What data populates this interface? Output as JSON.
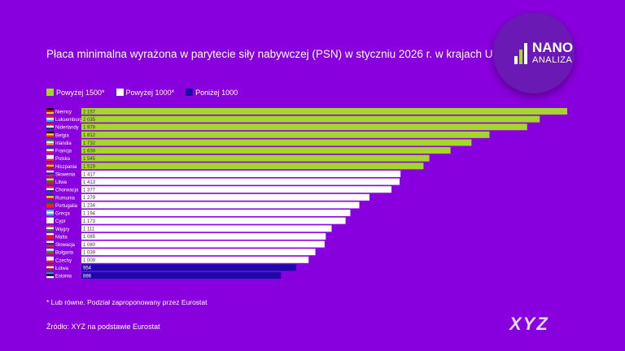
{
  "chart_data": {
    "type": "bar",
    "orientation": "horizontal",
    "title": "Płaca minimalna wyrażona w parytecie siły nabywczej (PSN) w styczniu 2026 r. w krajach UE",
    "categories": [
      "Niemcy",
      "Luksemburg",
      "Niderlandy",
      "Belgia",
      "Irlandia",
      "Francja",
      "Polska",
      "Hiszpania",
      "Słowenia",
      "Litwa",
      "Chorwacja",
      "Rumunia",
      "Portugalia",
      "Grecja",
      "Cypr",
      "Węgry",
      "Malta",
      "Słowacja",
      "Bułgaria",
      "Czechy",
      "Łotwa",
      "Estonia"
    ],
    "values": [
      2157,
      2035,
      1979,
      1812,
      1732,
      1639,
      1545,
      1519,
      1417,
      1413,
      1377,
      1279,
      1234,
      1194,
      1173,
      1111,
      1085,
      1080,
      1039,
      1009,
      954,
      886
    ],
    "value_labels": [
      "2 157",
      "2 035",
      "1 979",
      "1 812",
      "1 732",
      "1 639",
      "1 545",
      "1 519",
      "1 417",
      "1 413",
      "1 377",
      "1 279",
      "1 234",
      "1 194",
      "1 173",
      "1 111",
      "1 085",
      "1 080",
      "1 039",
      "1 009",
      "954",
      "886"
    ],
    "flag_colors": [
      [
        "#000",
        "#d00",
        "#fc0"
      ],
      [
        "#e22",
        "#fff",
        "#3af"
      ],
      [
        "#c22",
        "#fff",
        "#237"
      ],
      [
        "#000",
        "#fd2",
        "#e23"
      ],
      [
        "#193",
        "#fff",
        "#f82"
      ],
      [
        "#24a",
        "#fff",
        "#e23"
      ],
      [
        "#fff",
        "#fff",
        "#e24"
      ],
      [
        "#c12",
        "#fc0",
        "#c12"
      ],
      [
        "#fff",
        "#13a",
        "#e22"
      ],
      [
        "#fc1",
        "#183",
        "#c22"
      ],
      [
        "#e22",
        "#fff",
        "#13a"
      ],
      [
        "#13a",
        "#fd1",
        "#c12"
      ],
      [
        "#163",
        "#e22",
        "#e22"
      ],
      [
        "#5ad",
        "#fff",
        "#5ad"
      ],
      [
        "#fff",
        "#fff",
        "#fff"
      ],
      [
        "#c33",
        "#fff",
        "#474"
      ],
      [
        "#fff",
        "#e12",
        "#e12"
      ],
      [
        "#fff",
        "#13a",
        "#e22"
      ],
      [
        "#fff",
        "#194",
        "#d22"
      ],
      [
        "#fff",
        "#fff",
        "#d22"
      ],
      [
        "#a23",
        "#fff",
        "#a23"
      ],
      [
        "#38c",
        "#000",
        "#fff"
      ]
    ],
    "legend": [
      {
        "label": "Powyżej 1500*",
        "color": "#a6d62c"
      },
      {
        "label": "Powyżej 1000*",
        "color": "#ffffff"
      },
      {
        "label": "Poniżej 1000",
        "color": "#1a0aa8"
      }
    ],
    "xlim": [
      0,
      2157
    ],
    "grid": false,
    "legend_placement": "top-left"
  },
  "logo": {
    "line1": "NANO",
    "line2": "ANALIZA"
  },
  "footnote": "* Lub równe. Podział zaproponowany przez Eurostat",
  "source": "Źródło: XYZ na podstawie Eurostat",
  "brand": "XYZ"
}
